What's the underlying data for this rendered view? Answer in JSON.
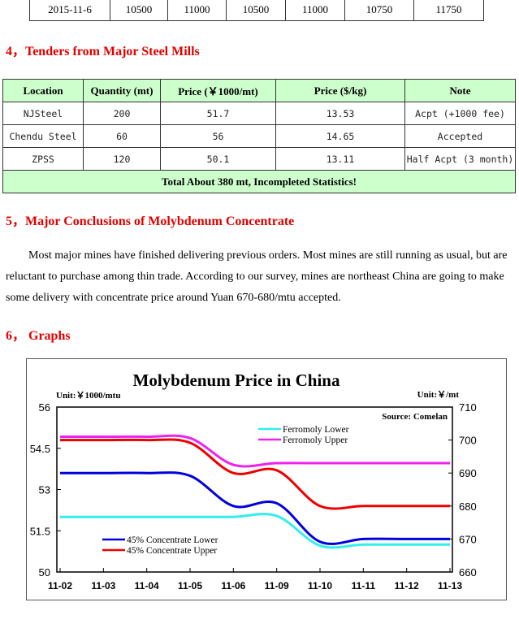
{
  "top_table": {
    "row": [
      "2015-11-6",
      "10500",
      "11000",
      "10500",
      "11000",
      "10750",
      "11750"
    ]
  },
  "section4": {
    "title": "4，Tenders from Major Steel Mills"
  },
  "tenders": {
    "headers": [
      "Location",
      "Quantity (mt)",
      "Price (￥1000/mt)",
      "Price ($/kg)",
      "Note"
    ],
    "rows": [
      [
        "NJSteel",
        "200",
        "51.7",
        "13.53",
        "Acpt (+1000 fee)"
      ],
      [
        "Chendu Steel",
        "60",
        "56",
        "14.65",
        "Accepted"
      ],
      [
        "ZPSS",
        "120",
        "50.1",
        "13.11",
        "Half Acpt (3 month)"
      ]
    ],
    "total": "Total About 380 mt, Incompleted Statistics!"
  },
  "section5": {
    "title": "5，Major Conclusions of Molybdenum Concentrate",
    "body": "Most major mines have finished delivering previous orders. Most mines are still running as usual, but are reluctant to purchase among thin trade. According to our survey, mines are northeast China are going to make some delivery with concentrate price around Yuan 670-680/mtu accepted."
  },
  "section6": {
    "title": "6，  Graphs"
  },
  "chart_data": {
    "type": "line",
    "title": "Molybdenum Price in China",
    "left_unit": "Unit:￥1000/mtu",
    "right_unit": "Unit:￥/mt",
    "source": "Source: Comelan",
    "categories": [
      "11-02",
      "11-03",
      "11-04",
      "11-05",
      "11-06",
      "11-09",
      "11-10",
      "11-11",
      "11-12",
      "11-13"
    ],
    "ylim_left": [
      50,
      56
    ],
    "yticks_left": [
      "50",
      "51.5",
      "53",
      "54.5",
      "56"
    ],
    "ylim_right": [
      660,
      710
    ],
    "yticks_right": [
      "660",
      "670",
      "680",
      "690",
      "700",
      "710"
    ],
    "series": [
      {
        "name": "Ferromoly Lower",
        "axis": "right",
        "color": "#33eeee",
        "values": [
          676.7,
          676.7,
          676.7,
          676.7,
          676.7,
          677,
          668,
          668.3,
          668.3,
          668.3
        ]
      },
      {
        "name": "Ferromoly Upper",
        "axis": "right",
        "color": "#ee22ee",
        "values": [
          701,
          701,
          701,
          700.6,
          692.5,
          693,
          693,
          693,
          693,
          693
        ]
      },
      {
        "name": "45% Concentrate Lower",
        "axis": "left",
        "color": "#0000dd",
        "values": [
          53.6,
          53.6,
          53.6,
          53.5,
          52.4,
          52.5,
          51.1,
          51.2,
          51.2,
          51.2
        ]
      },
      {
        "name": "45% Concentrate Upper",
        "axis": "left",
        "color": "#ee0000",
        "values": [
          54.8,
          54.8,
          54.8,
          54.7,
          53.6,
          53.7,
          52.4,
          52.4,
          52.4,
          52.4
        ]
      }
    ]
  }
}
